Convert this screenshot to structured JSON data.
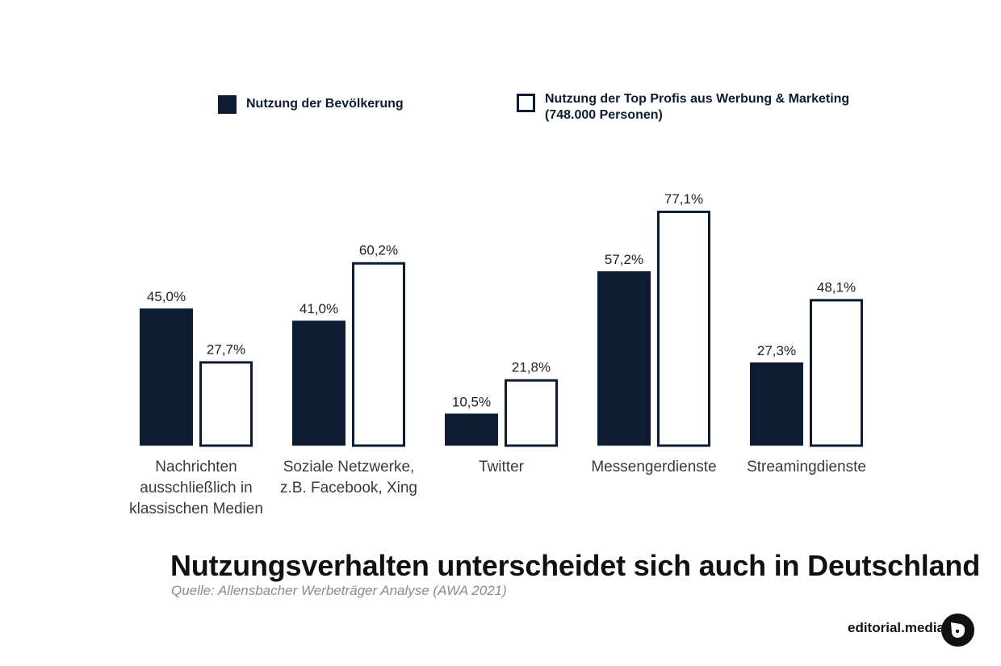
{
  "legend": {
    "series1_label": "Nutzung der Bevölkerung",
    "series2_line1": "Nutzung der Top Profis aus Werbung & Marketing",
    "series2_line2": "(748.000 Personen)"
  },
  "chart_data": {
    "type": "bar",
    "categories": [
      "Nachrichten ausschließlich in klassischen Medien",
      "Soziale Netzwerke, z.B. Facebook, Xing",
      "Twitter",
      "Messengerdienste",
      "Streamingdienste"
    ],
    "category_lines": [
      [
        "Nachrichten",
        "ausschließlich in",
        "klassischen Medien"
      ],
      [
        "Soziale Netzwerke,",
        "z.B. Facebook, Xing"
      ],
      [
        "Twitter"
      ],
      [
        "Messengerdienste"
      ],
      [
        "Streamingdienste"
      ]
    ],
    "series": [
      {
        "name": "Nutzung der Bevölkerung",
        "values": [
          45.0,
          41.0,
          10.5,
          57.2,
          27.3
        ],
        "labels": [
          "45,0%",
          "41,0%",
          "10,5%",
          "57,2%",
          "27,3%"
        ],
        "color": "#0d1b33",
        "style": "filled"
      },
      {
        "name": "Nutzung der Top Profis aus Werbung & Marketing (748.000 Personen)",
        "values": [
          27.7,
          60.2,
          21.8,
          77.1,
          48.1
        ],
        "labels": [
          "27,7%",
          "60,2%",
          "21,8%",
          "77,1%",
          "48,1%"
        ],
        "color": "#0d1b33",
        "style": "outline"
      }
    ],
    "title": "Nutzungsverhalten unterscheidet sich auch in Deutschland",
    "source": "Quelle: Allensbacher Werbeträger Analyse (AWA 2021)",
    "ylim": [
      0,
      100
    ],
    "grid": false,
    "legend_position": "top"
  },
  "brand": {
    "name": "editorial.media",
    "logo_icon": "editorial-media-logo-icon"
  },
  "colors": {
    "primary": "#0d1b33",
    "text": "#111111",
    "muted": "#8a8a8a"
  }
}
